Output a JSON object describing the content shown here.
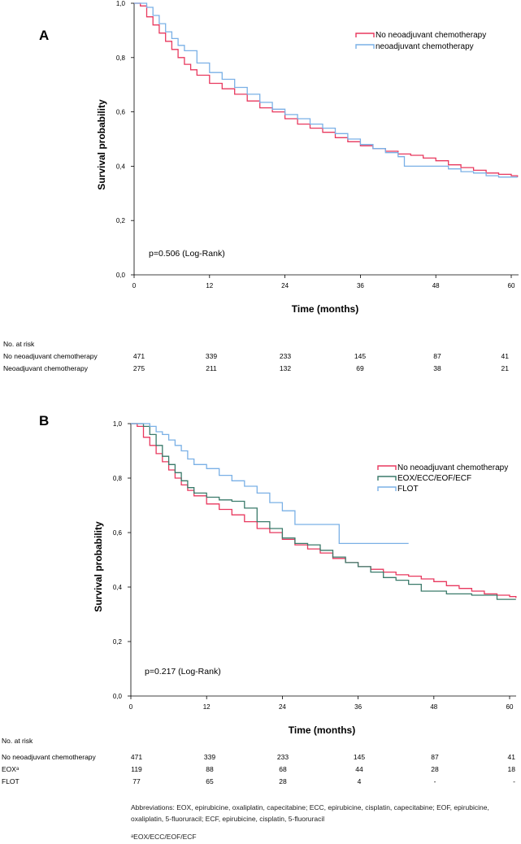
{
  "colors": {
    "no_neo": "#e8385e",
    "neo": "#7ab0e6",
    "eox": "#3a7a6a",
    "flot": "#7ab0e6",
    "axis": "#000000"
  },
  "chart_data": [
    {
      "type": "line",
      "panel_label": "A",
      "title": "",
      "xlabel": "Time (months)",
      "ylabel": "Survival probability",
      "xlim": [
        0,
        61
      ],
      "ylim": [
        0,
        1
      ],
      "x_ticks": [
        0,
        12,
        24,
        36,
        48,
        60
      ],
      "x_tick_labels": [
        "0",
        "12",
        "24",
        "36",
        "48",
        "60"
      ],
      "y_ticks": [
        0,
        0.2,
        0.4,
        0.6,
        0.8,
        1.0
      ],
      "y_tick_labels": [
        "0,0",
        "0,2",
        "0,4",
        "0,6",
        "0,8",
        "1,0"
      ],
      "annotation": "p=0.506 (Log-Rank)",
      "legend_position": "top-right",
      "series": [
        {
          "name": "No neoadjuvant chemotherapy",
          "color_key": "no_neo",
          "x": [
            0,
            1,
            2,
            3,
            4,
            5,
            6,
            7,
            8,
            9,
            10,
            12,
            14,
            16,
            18,
            20,
            22,
            24,
            26,
            28,
            30,
            32,
            34,
            36,
            38,
            40,
            42,
            44,
            46,
            48,
            50,
            52,
            54,
            56,
            58,
            60,
            61
          ],
          "y": [
            1.0,
            0.99,
            0.95,
            0.92,
            0.89,
            0.86,
            0.83,
            0.8,
            0.775,
            0.755,
            0.735,
            0.705,
            0.685,
            0.665,
            0.64,
            0.615,
            0.6,
            0.575,
            0.555,
            0.54,
            0.525,
            0.505,
            0.49,
            0.475,
            0.465,
            0.455,
            0.445,
            0.44,
            0.43,
            0.42,
            0.405,
            0.395,
            0.385,
            0.375,
            0.37,
            0.365,
            0.36
          ]
        },
        {
          "name": "neoadjuvant chemotherapy",
          "color_key": "neo",
          "x": [
            0,
            1,
            2,
            3,
            4,
            5,
            6,
            7,
            8,
            10,
            12,
            14,
            16,
            18,
            20,
            22,
            24,
            26,
            28,
            30,
            32,
            34,
            36,
            38,
            40,
            42,
            43,
            44,
            46,
            48,
            50,
            52,
            54,
            56,
            58,
            60,
            61
          ],
          "y": [
            1.0,
            1.0,
            0.985,
            0.955,
            0.925,
            0.895,
            0.87,
            0.845,
            0.825,
            0.78,
            0.745,
            0.72,
            0.69,
            0.665,
            0.635,
            0.61,
            0.59,
            0.575,
            0.555,
            0.54,
            0.52,
            0.5,
            0.48,
            0.465,
            0.45,
            0.435,
            0.4,
            0.4,
            0.4,
            0.4,
            0.39,
            0.38,
            0.375,
            0.365,
            0.36,
            0.36,
            0.36
          ]
        }
      ],
      "at_risk": {
        "heading": "No. at risk",
        "rows": [
          {
            "label": "No neoadjuvant chemotherapy",
            "values": [
              "471",
              "339",
              "233",
              "145",
              "87",
              "41"
            ]
          },
          {
            "label": "Neoadjuvant chemotherapy",
            "values": [
              "275",
              "211",
              "132",
              "69",
              "38",
              "21"
            ]
          }
        ]
      }
    },
    {
      "type": "line",
      "panel_label": "B",
      "title": "",
      "xlabel": "Time (months)",
      "ylabel": "Survival probability",
      "xlim": [
        0,
        61
      ],
      "ylim": [
        0,
        1
      ],
      "x_ticks": [
        0,
        12,
        24,
        36,
        48,
        60
      ],
      "x_tick_labels": [
        "0",
        "12",
        "24",
        "36",
        "48",
        "60"
      ],
      "y_ticks": [
        0,
        0.2,
        0.4,
        0.6,
        0.8,
        1.0
      ],
      "y_tick_labels": [
        "0,0",
        "0,2",
        "0,4",
        "0,6",
        "0,8",
        "1,0"
      ],
      "annotation": "p=0.217 (Log-Rank)",
      "legend_position": "right",
      "series": [
        {
          "name": "No neoadjuvant chemotherapy",
          "color_key": "no_neo",
          "x": [
            0,
            1,
            2,
            3,
            4,
            5,
            6,
            7,
            8,
            9,
            10,
            12,
            14,
            16,
            18,
            20,
            22,
            24,
            26,
            28,
            30,
            32,
            34,
            36,
            38,
            40,
            42,
            44,
            46,
            48,
            50,
            52,
            54,
            56,
            58,
            60,
            61
          ],
          "y": [
            1.0,
            0.99,
            0.95,
            0.92,
            0.89,
            0.86,
            0.83,
            0.8,
            0.775,
            0.755,
            0.735,
            0.705,
            0.685,
            0.665,
            0.64,
            0.615,
            0.6,
            0.575,
            0.555,
            0.54,
            0.525,
            0.505,
            0.49,
            0.475,
            0.465,
            0.455,
            0.445,
            0.44,
            0.43,
            0.42,
            0.405,
            0.395,
            0.385,
            0.375,
            0.37,
            0.365,
            0.36
          ]
        },
        {
          "name": "EOX/ECC/EOF/ECF",
          "color_key": "eox",
          "x": [
            0,
            2,
            3,
            4,
            5,
            6,
            7,
            8,
            9,
            10,
            12,
            14,
            16,
            18,
            20,
            22,
            24,
            26,
            28,
            30,
            32,
            34,
            36,
            38,
            40,
            42,
            44,
            46,
            48,
            50,
            52,
            54,
            56,
            58,
            60,
            61
          ],
          "y": [
            1.0,
            0.99,
            0.96,
            0.92,
            0.88,
            0.85,
            0.82,
            0.79,
            0.765,
            0.745,
            0.73,
            0.72,
            0.715,
            0.69,
            0.64,
            0.615,
            0.58,
            0.56,
            0.555,
            0.535,
            0.51,
            0.49,
            0.475,
            0.455,
            0.435,
            0.425,
            0.41,
            0.385,
            0.385,
            0.375,
            0.375,
            0.37,
            0.37,
            0.355,
            0.355,
            0.355
          ]
        },
        {
          "name": "FLOT",
          "color_key": "flot",
          "x": [
            0,
            2,
            3,
            4,
            5,
            6,
            7,
            8,
            9,
            10,
            12,
            14,
            16,
            18,
            20,
            22,
            24,
            26,
            28,
            30,
            32,
            33,
            34,
            36,
            38,
            40,
            42,
            44
          ],
          "y": [
            1.0,
            1.0,
            0.99,
            0.97,
            0.96,
            0.94,
            0.92,
            0.9,
            0.87,
            0.85,
            0.835,
            0.81,
            0.79,
            0.77,
            0.745,
            0.71,
            0.68,
            0.63,
            0.63,
            0.63,
            0.63,
            0.56,
            0.56,
            0.56,
            0.56,
            0.56,
            0.56,
            0.56
          ]
        }
      ],
      "at_risk": {
        "heading": "No. at risk",
        "rows": [
          {
            "label": "No neoadjuvant chemotherapy",
            "values": [
              "471",
              "339",
              "233",
              "145",
              "87",
              "41"
            ]
          },
          {
            "label": "EOXᵃ",
            "values": [
              "119",
              "88",
              "68",
              "44",
              "28",
              "18"
            ]
          },
          {
            "label": "FLOT",
            "values": [
              "77",
              "65",
              "28",
              "4",
              "-",
              "-"
            ]
          }
        ]
      }
    }
  ],
  "footnotes": {
    "abbreviations": "Abbreviations:  EOX, epirubicine, oxaliplatin, capecitabine; ECC, epirubicine, cisplatin, capecitabine; EOF, epirubicine, oxaliplatin, 5-fluoruracil; ECF, epirubicine, cisplatin, 5-fluoruracil",
    "superscript_note": "ᵃEOX/ECC/EOF/ECF"
  }
}
